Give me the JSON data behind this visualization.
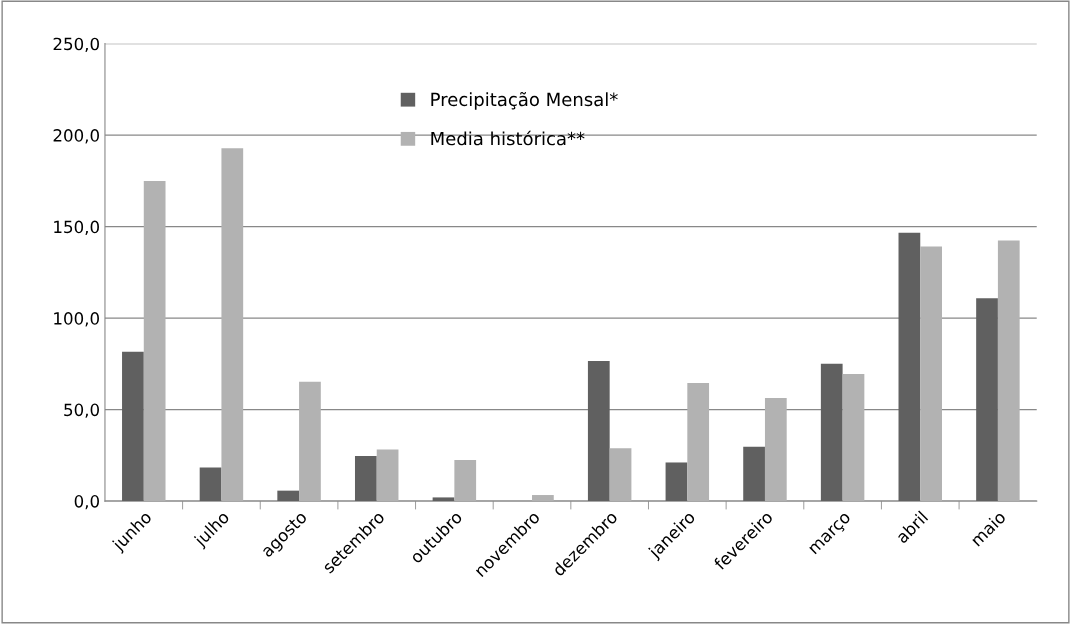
{
  "chart_data": {
    "type": "bar",
    "categories": [
      "junho",
      "julho",
      "agosto",
      "setembro",
      "outubro",
      "novembro",
      "dezembro",
      "janeiro",
      "fevereiro",
      "março",
      "abril",
      "maio"
    ],
    "series": [
      {
        "name": "Precipitação Mensal*",
        "color": "#606060",
        "values": [
          81.6,
          18.4,
          5.7,
          24.7,
          2.0,
          0,
          76.6,
          21.1,
          29.7,
          75.0,
          146.7,
          110.9
        ]
      },
      {
        "name": "Media histórica**",
        "color": "#b2b2b2",
        "values": [
          175.0,
          192.9,
          65.2,
          28.2,
          22.5,
          3.3,
          28.9,
          64.6,
          56.3,
          69.5,
          139.1,
          142.4
        ]
      }
    ],
    "ylim": [
      0,
      250
    ],
    "yticks": [
      {
        "value": 0,
        "label": "0,0"
      },
      {
        "value": 50,
        "label": "50,0"
      },
      {
        "value": 100,
        "label": "100,0"
      },
      {
        "value": 150,
        "label": "150,0"
      },
      {
        "value": 200,
        "label": "200,0"
      },
      {
        "value": 250,
        "label": "250,0"
      }
    ],
    "grid": "y",
    "legend": "top"
  }
}
